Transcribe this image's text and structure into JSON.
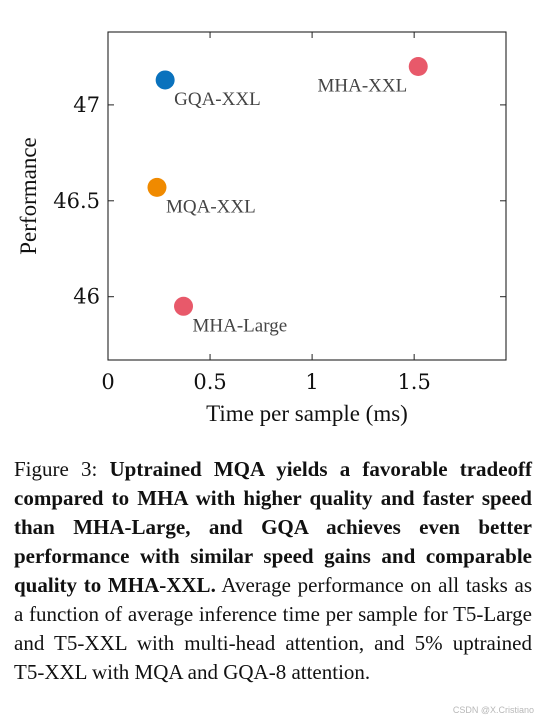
{
  "chart_data": {
    "type": "scatter",
    "title": "",
    "xlabel": "Time per sample (ms)",
    "ylabel": "Performance",
    "xlim": [
      0,
      1.95
    ],
    "ylim": [
      45.67,
      47.38
    ],
    "x_ticks": [
      0,
      0.5,
      1,
      1.5
    ],
    "x_tick_labels": [
      "0",
      "0.5",
      "1",
      "1.5"
    ],
    "y_ticks": [
      46,
      46.5,
      47
    ],
    "y_tick_labels": [
      "46",
      "46.5",
      "47"
    ],
    "grid": false,
    "points": [
      {
        "label": "MHA-XXL",
        "x": 1.52,
        "y": 47.2,
        "color": "#e8596a",
        "label_side": "left"
      },
      {
        "label": "GQA-XXL",
        "x": 0.28,
        "y": 47.13,
        "color": "#0a72bd",
        "label_side": "right"
      },
      {
        "label": "MQA-XXL",
        "x": 0.24,
        "y": 46.57,
        "color": "#f08a00",
        "label_side": "right"
      },
      {
        "label": "MHA-Large",
        "x": 0.37,
        "y": 45.95,
        "color": "#e8596a",
        "label_side": "right"
      }
    ]
  },
  "caption": {
    "prefix": "Figure 3: ",
    "bold": "Uptrained MQA yields a favorable tradeoff compared to MHA with higher quality and faster speed than MHA-Large, and GQA achieves even better performance with similar speed gains and comparable quality to MHA-XXL.",
    "rest": " Average performance on all tasks as a function of average inference time per sample for T5-Large and T5-XXL with multi-head attention, and 5% uptrained T5-XXL with MQA and GQA-8 attention."
  },
  "watermark": "CSDN @X.Cristiano"
}
